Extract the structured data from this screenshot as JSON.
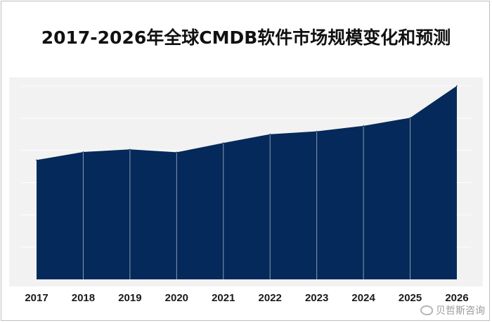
{
  "title": "2017-2026年全球CMDB软件市场规模变化和预测",
  "watermark": "贝哲斯咨询",
  "colors": {
    "area": "#04295a",
    "plot_background": "#f2f2f2",
    "gridline": "#ffffff",
    "divider": "#8c9bb0"
  },
  "chart_data": {
    "type": "area",
    "title": "2017-2026年全球CMDB软件市场规模变化和预测",
    "xlabel": "",
    "ylabel": "",
    "grid": true,
    "legend": "none",
    "ylim": [
      0,
      6
    ],
    "categories": [
      "2017",
      "2018",
      "2019",
      "2020",
      "2021",
      "2022",
      "2023",
      "2024",
      "2025",
      "2026"
    ],
    "series": [
      {
        "values": [
          3.7,
          3.95,
          4.03,
          3.94,
          4.23,
          4.5,
          4.59,
          4.76,
          5.01,
          6.0
        ]
      }
    ]
  }
}
